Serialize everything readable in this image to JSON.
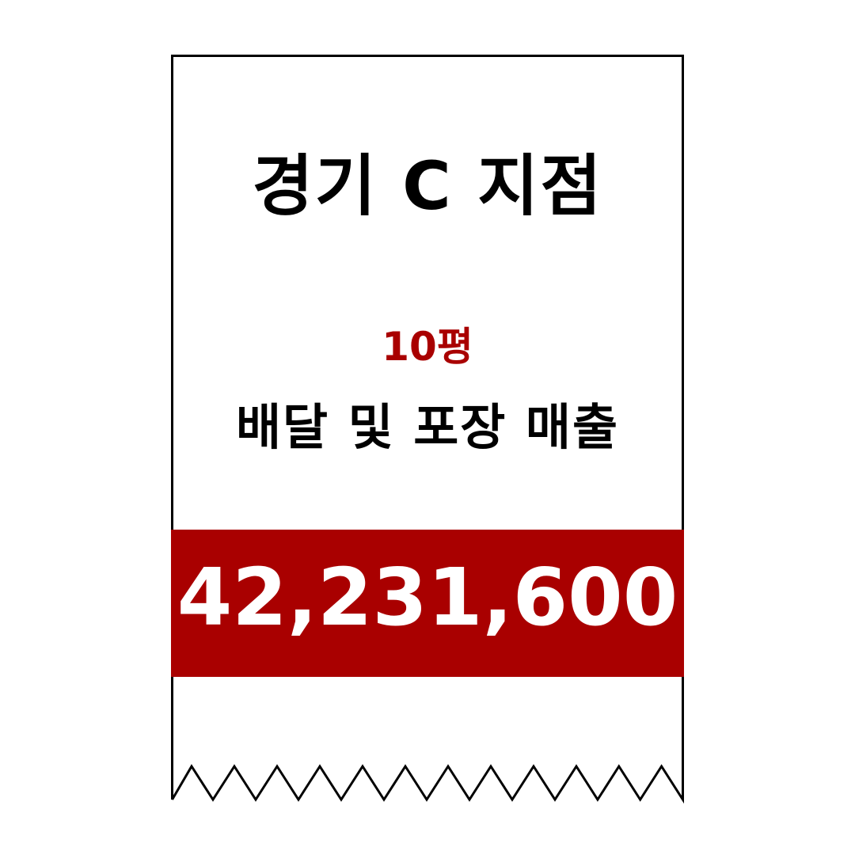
{
  "receipt": {
    "store_name": "경기 C 지점",
    "area": "10평",
    "caption": "배달 및 포장 매출",
    "amount": "42,231,600"
  },
  "colors": {
    "accent": "#a90000",
    "text": "#000000",
    "amount_text": "#ffffff",
    "background": "#ffffff"
  }
}
